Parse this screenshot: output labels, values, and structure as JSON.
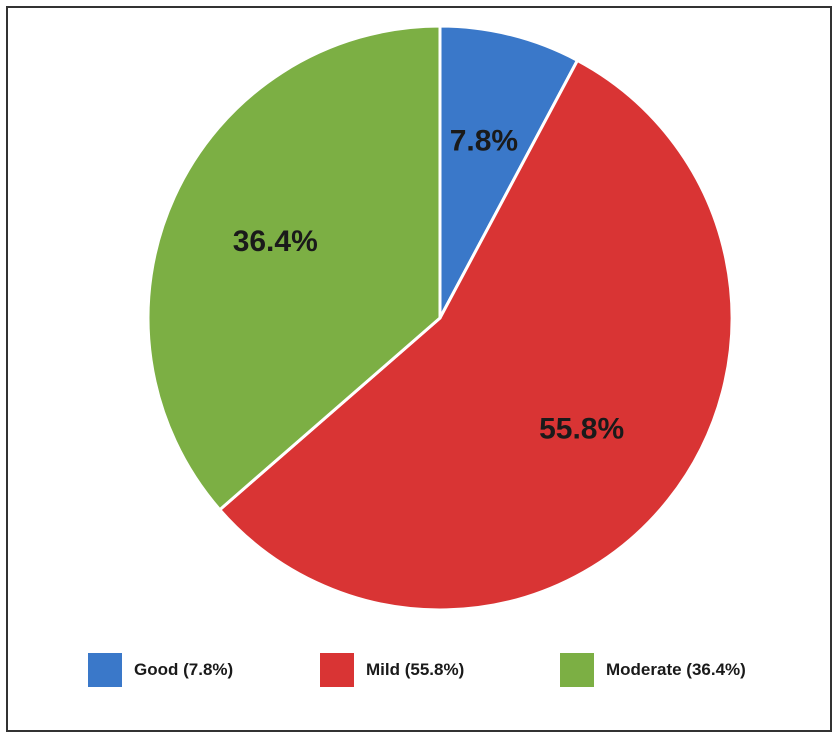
{
  "chart_data": {
    "type": "pie",
    "title": "",
    "categories": [
      "Good",
      "Mild",
      "Moderate"
    ],
    "values": [
      7.8,
      55.8,
      36.4
    ],
    "slice_labels": [
      "7.8%",
      "55.8%",
      "36.4%"
    ],
    "colors": [
      "#3a78c9",
      "#d93434",
      "#7caf44"
    ],
    "start_angle_deg": 0,
    "direction": "clockwise",
    "legend_placement": "bottom",
    "legend": [
      {
        "label": "Good (7.8%)",
        "color": "#3a78c9"
      },
      {
        "label": "Mild (55.8%)",
        "color": "#d93434"
      },
      {
        "label": "Moderate (36.4%)",
        "color": "#7caf44"
      }
    ]
  }
}
